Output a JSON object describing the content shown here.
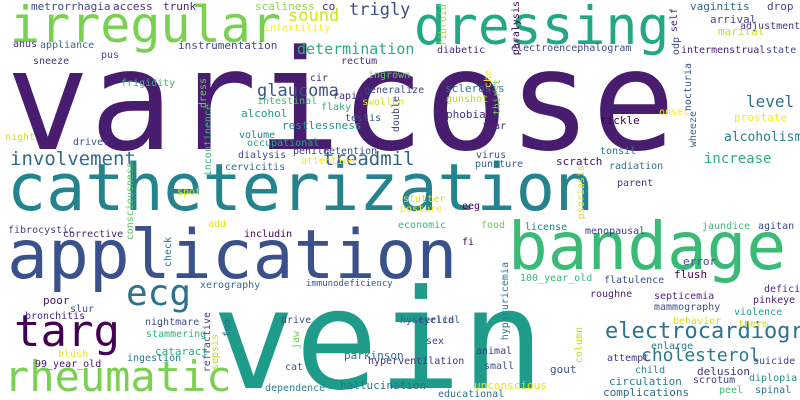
{
  "words": [
    {
      "text": "varicose",
      "color": "#481d6f"
    },
    {
      "text": "catheterization",
      "color": "#25838e"
    },
    {
      "text": "vein",
      "color": "#1e9c89"
    },
    {
      "text": "application",
      "color": "#3b518b"
    },
    {
      "text": "bandage",
      "color": "#3aba76"
    },
    {
      "text": "dressing",
      "color": "#22a884"
    },
    {
      "text": "irregular",
      "color": "#7ad151"
    },
    {
      "text": "rheumatic",
      "color": "#7ad151"
    },
    {
      "text": "targ",
      "color": "#440154"
    },
    {
      "text": "ecg",
      "color": "#2c718e"
    },
    {
      "text": "electrocardiogram",
      "color": "#2c728e"
    },
    {
      "text": "cholesterol",
      "color": "#2a788e"
    },
    {
      "text": "involvement",
      "color": "#306a8e"
    },
    {
      "text": "treadmil",
      "color": "#33628d"
    },
    {
      "text": "glaucoma",
      "color": "#3b528b"
    },
    {
      "text": "determination",
      "color": "#29af7f"
    },
    {
      "text": "sound",
      "color": "#d2e21b"
    },
    {
      "text": "trigly",
      "color": "#3e4c8a"
    },
    {
      "text": "level",
      "color": "#2d708e"
    },
    {
      "text": "alcoholism",
      "color": "#27808e"
    },
    {
      "text": "increase",
      "color": "#29af7f"
    },
    {
      "text": "metrorrhagia",
      "color": "#3e4989"
    },
    {
      "text": "access",
      "color": "#472f7d"
    },
    {
      "text": "trunk",
      "color": "#482576"
    },
    {
      "text": "scaliness",
      "color": "#8fd744"
    },
    {
      "text": "co",
      "color": "#482173"
    },
    {
      "text": "fibroid",
      "color": "#a0da39"
    },
    {
      "text": "vaginitis",
      "color": "#31688e"
    },
    {
      "text": "drop",
      "color": "#414487"
    },
    {
      "text": "adjustment",
      "color": "#46327e"
    },
    {
      "text": "anus",
      "color": "#453781"
    },
    {
      "text": "appliance",
      "color": "#31688e"
    },
    {
      "text": "instrumentation",
      "color": "#3e4a89"
    },
    {
      "text": "infertility",
      "color": "#fde725"
    },
    {
      "text": "diabetic",
      "color": "#482878"
    },
    {
      "text": "electroencephalogram",
      "color": "#3e4a89"
    },
    {
      "text": "arrival",
      "color": "#3e4989"
    },
    {
      "text": "marital",
      "color": "#c8e020"
    },
    {
      "text": "state",
      "color": "#3e4c8a"
    },
    {
      "text": "intermenstrual",
      "color": "#482475"
    },
    {
      "text": "sneeze",
      "color": "#46337f"
    },
    {
      "text": "pus",
      "color": "#3f4889"
    },
    {
      "text": "frigidity",
      "color": "#3aba76"
    },
    {
      "text": "rectum",
      "color": "#46337f"
    },
    {
      "text": "ingrown",
      "color": "#5ec962"
    },
    {
      "text": "generalize",
      "color": "#3e4989"
    },
    {
      "text": "sclerosis",
      "color": "#2a788e"
    },
    {
      "text": "cir",
      "color": "#472a7a"
    },
    {
      "text": "rapid",
      "color": "#46307e"
    },
    {
      "text": "flaky",
      "color": "#2fb47c"
    },
    {
      "text": "testis",
      "color": "#3b528b"
    },
    {
      "text": "swollen",
      "color": "#d2e21b"
    },
    {
      "text": "gunshot",
      "color": "#b5de2b"
    },
    {
      "text": "intestinal",
      "color": "#3fbc73"
    },
    {
      "text": "alcohol",
      "color": "#1f988b"
    },
    {
      "text": "restlessness",
      "color": "#21918c"
    },
    {
      "text": "phobia",
      "color": "#453581"
    },
    {
      "text": "fear",
      "color": "#482878"
    },
    {
      "text": "tickle",
      "color": "#440154"
    },
    {
      "text": "prostate",
      "color": "#fde725"
    },
    {
      "text": "volume",
      "color": "#277f8e"
    },
    {
      "text": "occupational",
      "color": "#22a884"
    },
    {
      "text": "penile",
      "color": "#453781"
    },
    {
      "text": "retention",
      "color": "#3b528b"
    },
    {
      "text": "dialysis",
      "color": "#3e4c8a"
    },
    {
      "text": "cervicitis",
      "color": "#2f6c8e"
    },
    {
      "text": "attention",
      "color": "#fde725"
    },
    {
      "text": "virus",
      "color": "#38588c"
    },
    {
      "text": "puncture",
      "color": "#32658e"
    },
    {
      "text": "scratch",
      "color": "#471063"
    },
    {
      "text": "tonsil",
      "color": "#29798e"
    },
    {
      "text": "radiation",
      "color": "#2c738e"
    },
    {
      "text": "night",
      "color": "#d8e219"
    },
    {
      "text": "driver",
      "color": "#3b518b"
    },
    {
      "text": "consciousness",
      "color": "#54c568"
    },
    {
      "text": "parent",
      "color": "#443a83"
    },
    {
      "text": "spot",
      "color": "#dde318"
    },
    {
      "text": "stutter",
      "color": "#d8e219"
    },
    {
      "text": "posture",
      "color": "#fde725"
    },
    {
      "text": "eeg",
      "color": "#440154"
    },
    {
      "text": "add",
      "color": "#e5e419"
    },
    {
      "text": "fibrocystic",
      "color": "#414487"
    },
    {
      "text": "corrective",
      "color": "#482475"
    },
    {
      "text": "includin",
      "color": "#440154"
    },
    {
      "text": "economic",
      "color": "#35b779"
    },
    {
      "text": "license",
      "color": "#287d8e"
    },
    {
      "text": "menopausal",
      "color": "#443b84"
    },
    {
      "text": "jaundice",
      "color": "#3aba76"
    },
    {
      "text": "agitan",
      "color": "#3f4889"
    },
    {
      "text": "food",
      "color": "#6ece58"
    },
    {
      "text": "fi",
      "color": "#440154"
    },
    {
      "text": "error",
      "color": "#3b528b"
    },
    {
      "text": "flush",
      "color": "#440154"
    },
    {
      "text": "check",
      "color": "#2c718e"
    },
    {
      "text": "xerography",
      "color": "#2d708e"
    },
    {
      "text": "immunodeficiency",
      "color": "#38588c"
    },
    {
      "text": "100_year_old",
      "color": "#35b779"
    },
    {
      "text": "flatulence",
      "color": "#3b518b"
    },
    {
      "text": "deficit",
      "color": "#472d7b"
    },
    {
      "text": "roughne",
      "color": "#482576"
    },
    {
      "text": "septicemia",
      "color": "#482878"
    },
    {
      "text": "mammography",
      "color": "#3b518b"
    },
    {
      "text": "pinkeye",
      "color": "#481a6c"
    },
    {
      "text": "violence",
      "color": "#1fa088"
    },
    {
      "text": "therm",
      "color": "#c8e020"
    },
    {
      "text": "poor",
      "color": "#471365"
    },
    {
      "text": "slur",
      "color": "#3b528b"
    },
    {
      "text": "drive",
      "color": "#3e4a89"
    },
    {
      "text": "hysterical",
      "color": "#31688e"
    },
    {
      "text": "bronchitis",
      "color": "#482677"
    },
    {
      "text": "nightmare",
      "color": "#3e4a89"
    },
    {
      "text": "eyelid",
      "color": "#414487"
    },
    {
      "text": "stammering",
      "color": "#2db27d"
    },
    {
      "text": "cataract",
      "color": "#29af7f"
    },
    {
      "text": "blush",
      "color": "#eae51a"
    },
    {
      "text": "99_year_old",
      "color": "#481467"
    },
    {
      "text": "ingestion",
      "color": "#297b8e"
    },
    {
      "text": "parkinson",
      "color": "#2b748e"
    },
    {
      "text": "hyperventilation",
      "color": "#472c7a"
    },
    {
      "text": "sex",
      "color": "#3f4889"
    },
    {
      "text": "animal",
      "color": "#443983"
    },
    {
      "text": "small",
      "color": "#3b528b"
    },
    {
      "text": "gout",
      "color": "#38588c"
    },
    {
      "text": "attempt",
      "color": "#46337f"
    },
    {
      "text": "enlarge",
      "color": "#2a788e"
    },
    {
      "text": "child",
      "color": "#25848e"
    },
    {
      "text": "delusion",
      "color": "#453581"
    },
    {
      "text": "suicide",
      "color": "#3f4889"
    },
    {
      "text": "behavior",
      "color": "#d5e21a"
    },
    {
      "text": "circulation",
      "color": "#25838e"
    },
    {
      "text": "scrotum",
      "color": "#414487"
    },
    {
      "text": "diplopia",
      "color": "#21918c"
    },
    {
      "text": "cat",
      "color": "#3a548c"
    },
    {
      "text": "dependence",
      "color": "#25848e"
    },
    {
      "text": "hallucination",
      "color": "#2c738e"
    },
    {
      "text": "unconscious",
      "color": "#e7e419"
    },
    {
      "text": "educational",
      "color": "#2c718e"
    },
    {
      "text": "complications",
      "color": "#2f6b8e"
    },
    {
      "text": "peel",
      "color": "#3dbc74"
    },
    {
      "text": "spinal",
      "color": "#2c718e"
    },
    {
      "text": "self",
      "color": "#481d6f"
    },
    {
      "text": "odp",
      "color": "#3b528b"
    },
    {
      "text": "dress",
      "color": "#6ece58"
    },
    {
      "text": "incontinence",
      "color": "#3aba76"
    },
    {
      "text": "double",
      "color": "#3f4788"
    },
    {
      "text": "che",
      "color": "#fde725"
    },
    {
      "text": "thirst",
      "color": "#73d056"
    },
    {
      "text": "paralysis",
      "color": "#440154"
    },
    {
      "text": "nocturia",
      "color": "#3b528b"
    },
    {
      "text": "wheeze",
      "color": "#31688e"
    },
    {
      "text": "psoriasis",
      "color": "#dde318"
    },
    {
      "text": "hyperuricemia",
      "color": "#287c8e"
    },
    {
      "text": "refractive",
      "color": "#414487"
    },
    {
      "text": "foo",
      "color": "#31688e"
    },
    {
      "text": "sepsis",
      "color": "#b5de2b"
    },
    {
      "text": "jaw",
      "color": "#73d056"
    },
    {
      "text": "onset",
      "color": "#b5de2b"
    },
    {
      "text": "column",
      "color": "#fde725"
    }
  ]
}
